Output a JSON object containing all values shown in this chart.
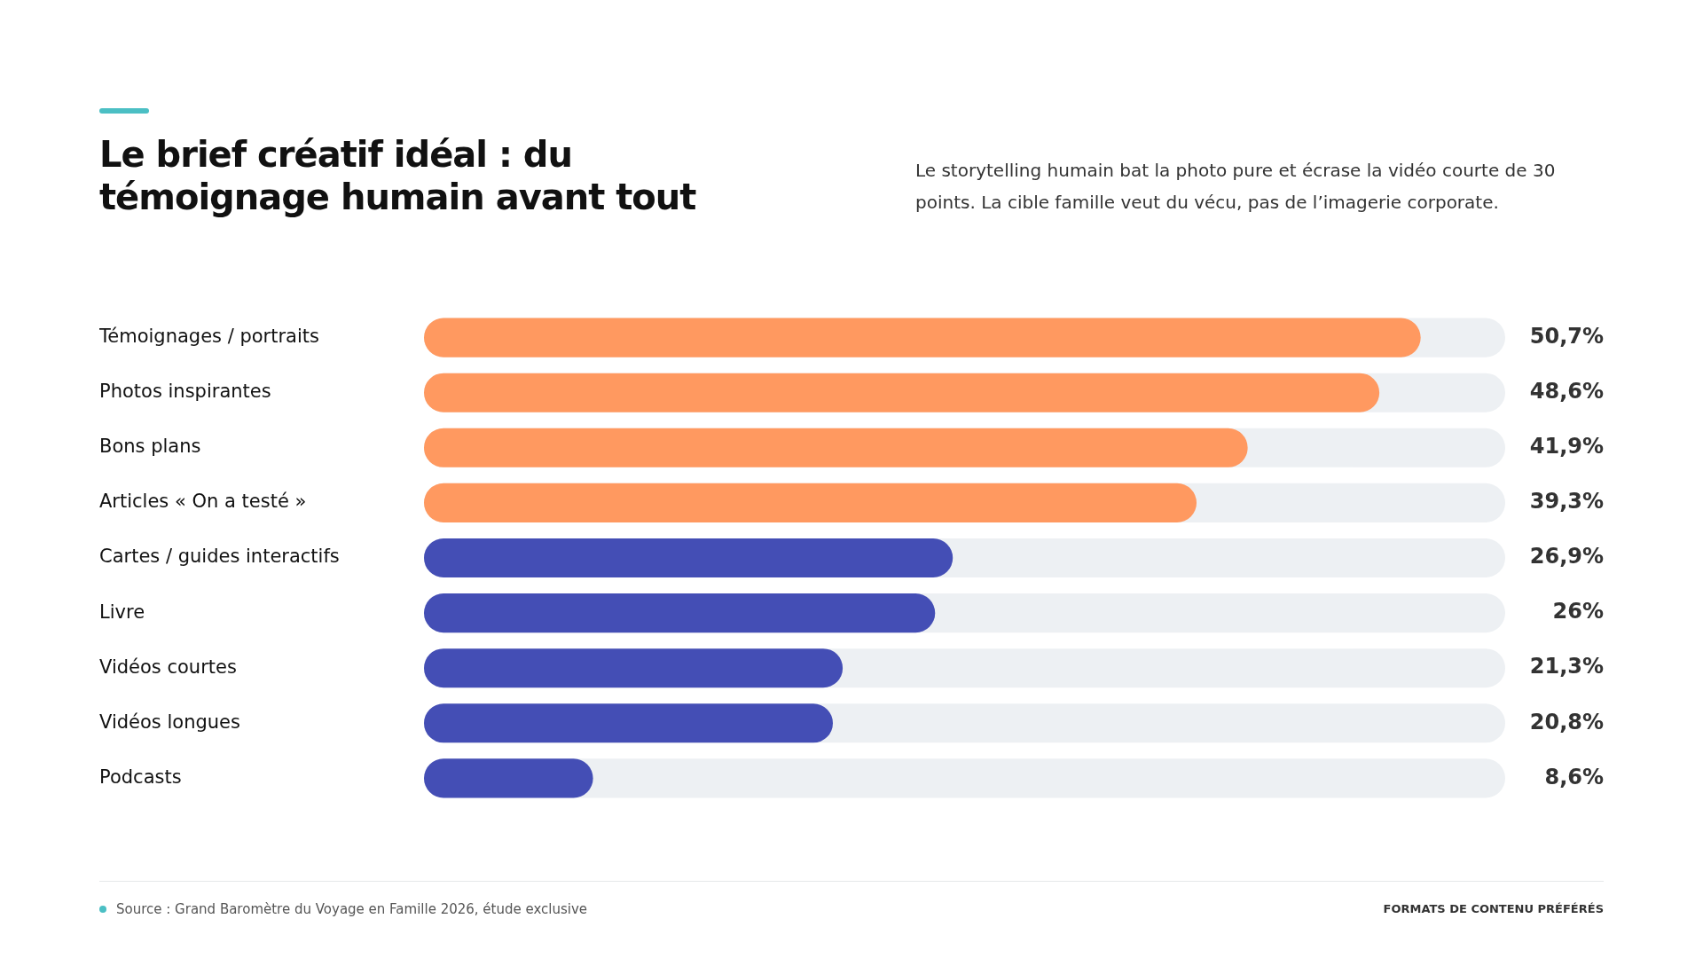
{
  "chart_data": {
    "type": "bar",
    "orientation": "horizontal",
    "title": "Le brief créatif idéal : du témoignage humain avant tout",
    "subtitle": "Le storytelling humain bat la photo pure et écrase la vidéo courte de 30 points. La cible famille veut du vécu, pas de l’imagerie corporate.",
    "categories": [
      "Témoignages / portraits",
      "Photos inspirantes",
      "Bons plans",
      "Articles « On a testé »",
      "Cartes / guides interactifs",
      "Livre",
      "Vidéos courtes",
      "Vidéos longues",
      "Podcasts"
    ],
    "values": [
      50.7,
      48.6,
      41.9,
      39.3,
      26.9,
      26,
      21.3,
      20.8,
      8.6
    ],
    "value_labels": [
      "50,7%",
      "48,6%",
      "41,9%",
      "39,3%",
      "26,9%",
      "26%",
      "21,3%",
      "20,8%",
      "8,6%"
    ],
    "colors": [
      "#ff9960",
      "#ff9960",
      "#ff9960",
      "#ff9960",
      "#444eb5",
      "#444eb5",
      "#444eb5",
      "#444eb5",
      "#444eb5"
    ],
    "xlim": [
      0,
      55
    ],
    "tick_labels": "y",
    "annotations": [
      "Source : Grand Baromètre du Voyage en Famille 2026, étude exclusive",
      "FORMATS DE CONTENU PRÉFÉRÉS"
    ]
  }
}
